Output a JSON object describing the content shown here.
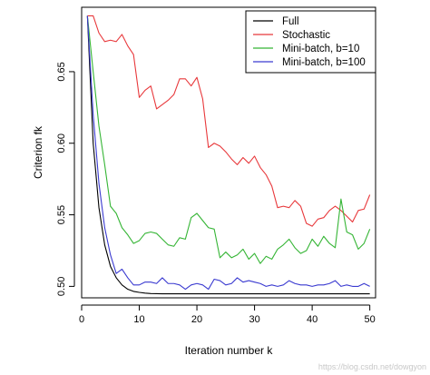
{
  "chart_data": {
    "type": "line",
    "xlabel": "Iteration number k",
    "ylabel": "Criterion fk",
    "xlim": [
      0,
      51
    ],
    "ylim": [
      0.492,
      0.695
    ],
    "xticks": [
      0,
      10,
      20,
      30,
      40,
      50
    ],
    "yticks": [
      0.5,
      0.55,
      0.6,
      0.65
    ],
    "ytick_labels": [
      "0.50",
      "0.55",
      "0.60",
      "0.65"
    ],
    "grid": false,
    "legend_position": "top-right",
    "series": [
      {
        "name": "Full",
        "color": "#000000",
        "x": [
          1,
          2,
          3,
          4,
          5,
          6,
          7,
          8,
          9,
          10,
          11,
          12,
          13,
          14,
          15,
          16,
          17,
          18,
          19,
          20,
          21,
          22,
          23,
          24,
          25,
          26,
          27,
          28,
          29,
          30,
          31,
          32,
          33,
          34,
          35,
          36,
          37,
          38,
          39,
          40,
          41,
          42,
          43,
          44,
          45,
          46,
          47,
          48,
          49,
          50
        ],
        "values": [
          0.689,
          0.6,
          0.555,
          0.529,
          0.514,
          0.506,
          0.501,
          0.498,
          0.4965,
          0.4958,
          0.4953,
          0.495,
          0.4949,
          0.4948,
          0.4948,
          0.4948,
          0.4948,
          0.4948,
          0.4948,
          0.4948,
          0.4948,
          0.4948,
          0.4948,
          0.4948,
          0.4948,
          0.4948,
          0.4948,
          0.4948,
          0.4948,
          0.4948,
          0.4948,
          0.4948,
          0.4948,
          0.4948,
          0.4948,
          0.4948,
          0.4948,
          0.4948,
          0.4948,
          0.4948,
          0.4948,
          0.4948,
          0.4948,
          0.4948,
          0.4948,
          0.4948,
          0.4948,
          0.4948,
          0.4948,
          0.4948
        ]
      },
      {
        "name": "Stochastic",
        "color": "#e8383b",
        "x": [
          1,
          2,
          3,
          4,
          5,
          6,
          7,
          8,
          9,
          10,
          11,
          12,
          13,
          14,
          15,
          16,
          17,
          18,
          19,
          20,
          21,
          22,
          23,
          24,
          25,
          26,
          27,
          28,
          29,
          30,
          31,
          32,
          33,
          34,
          35,
          36,
          37,
          38,
          39,
          40,
          41,
          42,
          43,
          44,
          45,
          46,
          47,
          48,
          49,
          50
        ],
        "values": [
          0.689,
          0.689,
          0.677,
          0.671,
          0.672,
          0.671,
          0.676,
          0.668,
          0.662,
          0.632,
          0.637,
          0.64,
          0.624,
          0.627,
          0.63,
          0.634,
          0.645,
          0.645,
          0.64,
          0.646,
          0.631,
          0.597,
          0.6,
          0.598,
          0.594,
          0.589,
          0.585,
          0.59,
          0.586,
          0.591,
          0.583,
          0.578,
          0.57,
          0.555,
          0.556,
          0.555,
          0.56,
          0.556,
          0.544,
          0.542,
          0.547,
          0.548,
          0.553,
          0.556,
          0.553,
          0.549,
          0.545,
          0.553,
          0.554,
          0.564
        ]
      },
      {
        "name": "Mini-batch, b=10",
        "color": "#35b535",
        "x": [
          1,
          2,
          3,
          4,
          5,
          6,
          7,
          8,
          9,
          10,
          11,
          12,
          13,
          14,
          15,
          16,
          17,
          18,
          19,
          20,
          21,
          22,
          23,
          24,
          25,
          26,
          27,
          28,
          29,
          30,
          31,
          32,
          33,
          34,
          35,
          36,
          37,
          38,
          39,
          40,
          41,
          42,
          43,
          44,
          45,
          46,
          47,
          48,
          49,
          50
        ],
        "values": [
          0.689,
          0.65,
          0.612,
          0.585,
          0.556,
          0.551,
          0.541,
          0.536,
          0.53,
          0.532,
          0.537,
          0.538,
          0.537,
          0.533,
          0.529,
          0.528,
          0.534,
          0.533,
          0.548,
          0.551,
          0.546,
          0.541,
          0.54,
          0.52,
          0.524,
          0.52,
          0.522,
          0.526,
          0.519,
          0.523,
          0.516,
          0.521,
          0.519,
          0.526,
          0.529,
          0.533,
          0.527,
          0.523,
          0.525,
          0.533,
          0.528,
          0.535,
          0.53,
          0.527,
          0.561,
          0.538,
          0.536,
          0.526,
          0.53,
          0.54
        ]
      },
      {
        "name": "Mini-batch, b=100",
        "color": "#3a3ad0",
        "x": [
          1,
          2,
          3,
          4,
          5,
          6,
          7,
          8,
          9,
          10,
          11,
          12,
          13,
          14,
          15,
          16,
          17,
          18,
          19,
          20,
          21,
          22,
          23,
          24,
          25,
          26,
          27,
          28,
          29,
          30,
          31,
          32,
          33,
          34,
          35,
          36,
          37,
          38,
          39,
          40,
          41,
          42,
          43,
          44,
          45,
          46,
          47,
          48,
          49,
          50
        ],
        "values": [
          0.689,
          0.62,
          0.572,
          0.541,
          0.522,
          0.509,
          0.512,
          0.506,
          0.501,
          0.501,
          0.503,
          0.503,
          0.502,
          0.506,
          0.502,
          0.502,
          0.501,
          0.498,
          0.501,
          0.502,
          0.501,
          0.498,
          0.505,
          0.504,
          0.501,
          0.502,
          0.506,
          0.503,
          0.504,
          0.503,
          0.502,
          0.5,
          0.501,
          0.5,
          0.501,
          0.504,
          0.502,
          0.501,
          0.501,
          0.5,
          0.501,
          0.501,
          0.502,
          0.504,
          0.5,
          0.501,
          0.5,
          0.5,
          0.502,
          0.5
        ]
      }
    ]
  },
  "watermark": "https://blog.csdn.net/dowgyon"
}
